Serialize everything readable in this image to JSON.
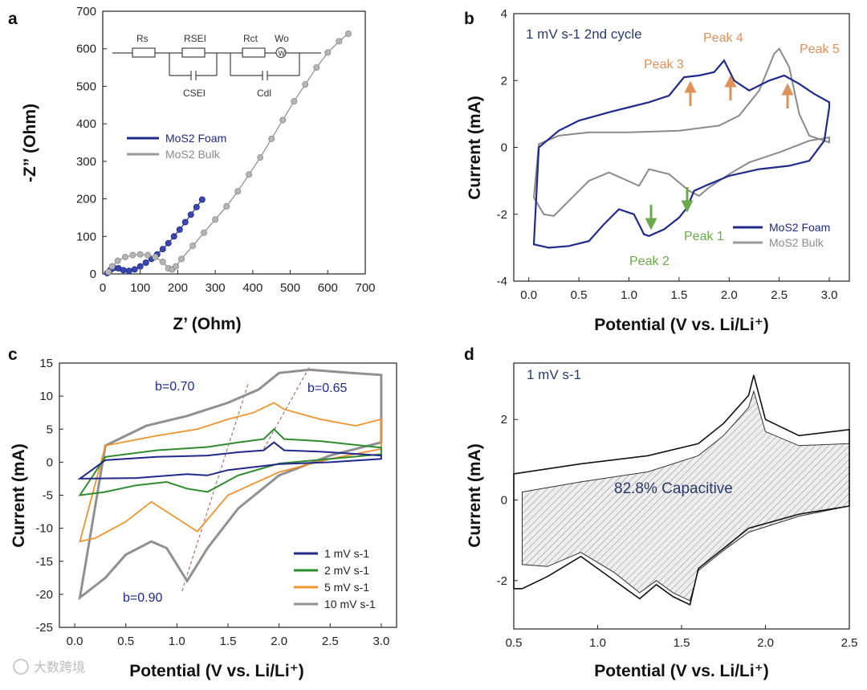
{
  "panels": {
    "a": {
      "label": "a",
      "xlabel": "Z’ (Ohm)",
      "ylabel": "-Z” (Ohm)",
      "legend": [
        "MoS2 Foam",
        "MoS2 Bulk"
      ],
      "circuit": {
        "rs": "Rs",
        "rsei": "RSEI",
        "rct": "Rct",
        "wo": "Wo",
        "csei": "CSEI",
        "cdl": "Cdl",
        "w_symbol": "W"
      }
    },
    "b": {
      "label": "b",
      "xlabel": "Potential (V vs. Li/Li⁺)",
      "ylabel": "Current (mA)",
      "note": "1 mV s-1  2nd cycle",
      "legend": [
        "MoS2 Foam",
        "MoS2 Bulk"
      ],
      "peaks": [
        "Peak 1",
        "Peak 2",
        "Peak 3",
        "Peak 4",
        "Peak 5"
      ]
    },
    "c": {
      "label": "c",
      "xlabel": "Potential (V vs. Li/Li⁺)",
      "ylabel": "Current (mA)",
      "legend": [
        "1 mV s-1",
        "2 mV s-1",
        "5 mV s-1",
        "10 mV s-1"
      ],
      "b_values": [
        "b=0.70",
        "b=0.65",
        "b=0.90"
      ]
    },
    "d": {
      "label": "d",
      "xlabel": "Potential (V vs. Li/Li⁺)",
      "ylabel": "Current (mA)",
      "note": "1 mV s-1",
      "fill_label": "82.8% Capacitive"
    }
  },
  "watermark": "大数跨境",
  "colors": {
    "foam": "#1f2a8c",
    "bulk": "#8a8a8a",
    "peak_ox": "#e0915a",
    "peak_red": "#6aaa4a",
    "green": "#2e8b2e",
    "orange": "#f0932b",
    "grey10": "#909090",
    "dash": "#b07070"
  },
  "chart_data": [
    {
      "panel": "a",
      "type": "scatter",
      "xlabel": "Z’ (Ohm)",
      "ylabel": "-Z” (Ohm)",
      "xlim": [
        0,
        700
      ],
      "ylim": [
        0,
        700
      ],
      "xticks": [
        0,
        100,
        200,
        300,
        400,
        500,
        600,
        700
      ],
      "yticks": [
        0,
        100,
        200,
        300,
        400,
        500,
        600,
        700
      ],
      "series": [
        {
          "name": "MoS2 Foam",
          "x": [
            12,
            20,
            30,
            42,
            55,
            70,
            85,
            100,
            115,
            130,
            145,
            160,
            175,
            190,
            205,
            220,
            235,
            250,
            265
          ],
          "y": [
            2,
            10,
            16,
            15,
            10,
            8,
            12,
            20,
            30,
            40,
            52,
            66,
            82,
            100,
            118,
            138,
            158,
            178,
            198
          ]
        },
        {
          "name": "MoS2 Bulk",
          "x": [
            15,
            25,
            40,
            60,
            80,
            100,
            120,
            140,
            160,
            175,
            185,
            195,
            210,
            240,
            270,
            300,
            330,
            360,
            390,
            420,
            450,
            480,
            510,
            540,
            570,
            600,
            630,
            655
          ],
          "y": [
            5,
            20,
            35,
            45,
            50,
            52,
            50,
            45,
            32,
            15,
            12,
            20,
            40,
            75,
            110,
            145,
            180,
            220,
            265,
            310,
            360,
            410,
            460,
            505,
            550,
            590,
            620,
            640
          ]
        }
      ]
    },
    {
      "panel": "b",
      "type": "line",
      "xlabel": "Potential (V vs. Li/Li⁺)",
      "ylabel": "Current (mA)",
      "xlim": [
        -0.15,
        3.2
      ],
      "ylim": [
        -4,
        4
      ],
      "xticks": [
        0.0,
        0.5,
        1.0,
        1.5,
        2.0,
        2.5,
        3.0
      ],
      "yticks": [
        -4,
        -2,
        0,
        2,
        4
      ],
      "series": [
        {
          "name": "MoS2 Foam",
          "x": [
            0.05,
            0.1,
            0.3,
            0.5,
            0.8,
            1.0,
            1.2,
            1.4,
            1.55,
            1.7,
            1.85,
            1.95,
            2.05,
            2.2,
            2.4,
            2.55,
            2.7,
            2.85,
            3.0,
            3.0,
            2.95,
            2.8,
            2.6,
            2.3,
            2.0,
            1.8,
            1.65,
            1.58,
            1.5,
            1.35,
            1.2,
            1.15,
            1.05,
            0.9,
            0.75,
            0.6,
            0.4,
            0.2,
            0.05
          ],
          "y": [
            -2.9,
            0.0,
            0.5,
            0.8,
            1.05,
            1.2,
            1.35,
            1.55,
            2.1,
            2.15,
            2.25,
            2.6,
            2.0,
            1.7,
            2.0,
            2.15,
            1.9,
            1.6,
            1.35,
            1.2,
            0.2,
            -0.4,
            -0.55,
            -0.65,
            -0.85,
            -1.1,
            -1.3,
            -1.8,
            -2.1,
            -2.45,
            -2.65,
            -2.6,
            -2.0,
            -1.85,
            -2.3,
            -2.8,
            -2.95,
            -3.0,
            -2.9
          ]
        },
        {
          "name": "MoS2 Bulk",
          "x": [
            0.05,
            0.1,
            0.3,
            0.6,
            1.0,
            1.5,
            1.9,
            2.1,
            2.3,
            2.45,
            2.5,
            2.6,
            2.7,
            2.8,
            3.0,
            3.0,
            2.8,
            2.5,
            2.2,
            2.0,
            1.8,
            1.7,
            1.6,
            1.4,
            1.2,
            1.1,
            0.95,
            0.8,
            0.6,
            0.4,
            0.25,
            0.15,
            0.05
          ],
          "y": [
            -1.5,
            0.1,
            0.35,
            0.45,
            0.45,
            0.5,
            0.65,
            0.95,
            1.7,
            2.8,
            2.95,
            2.4,
            1.0,
            0.35,
            0.15,
            0.3,
            0.2,
            -0.15,
            -0.45,
            -0.8,
            -1.2,
            -1.45,
            -1.3,
            -0.8,
            -0.65,
            -1.15,
            -0.95,
            -0.75,
            -1.0,
            -1.6,
            -2.05,
            -2.0,
            -1.5
          ]
        }
      ]
    },
    {
      "panel": "c",
      "type": "line",
      "xlabel": "Potential (V vs. Li/Li⁺)",
      "ylabel": "Current (mA)",
      "xlim": [
        -0.15,
        3.15
      ],
      "ylim": [
        -25,
        15
      ],
      "xticks": [
        0.0,
        0.5,
        1.0,
        1.5,
        2.0,
        2.5,
        3.0
      ],
      "yticks": [
        -25,
        -20,
        -15,
        -10,
        -5,
        0,
        5,
        10,
        15
      ],
      "series": [
        {
          "name": "1 mV s-1",
          "x": [
            0.05,
            0.3,
            0.8,
            1.3,
            1.6,
            1.85,
            1.95,
            2.05,
            2.4,
            3.0,
            3.0,
            2.5,
            2.0,
            1.5,
            1.3,
            1.1,
            0.6,
            0.05
          ],
          "y": [
            -2.5,
            0.3,
            0.8,
            1.0,
            1.5,
            1.8,
            3.0,
            1.8,
            1.6,
            1.0,
            0.5,
            0.0,
            -0.3,
            -1.2,
            -2.0,
            -1.8,
            -2.4,
            -2.5
          ]
        },
        {
          "name": "2 mV s-1",
          "x": [
            0.05,
            0.3,
            0.8,
            1.3,
            1.6,
            1.85,
            1.95,
            2.05,
            2.4,
            3.0,
            3.0,
            2.5,
            2.0,
            1.6,
            1.3,
            1.1,
            0.9,
            0.6,
            0.3,
            0.05
          ],
          "y": [
            -5.0,
            0.8,
            1.8,
            2.3,
            3.0,
            3.5,
            5.0,
            3.5,
            3.2,
            2.2,
            1.2,
            0.5,
            -0.2,
            -2.0,
            -4.5,
            -4.0,
            -3.0,
            -3.5,
            -4.5,
            -5.0
          ]
        },
        {
          "name": "5 mV s-1",
          "x": [
            0.05,
            0.3,
            0.8,
            1.2,
            1.5,
            1.75,
            1.95,
            2.05,
            2.4,
            2.75,
            3.0,
            3.0,
            2.5,
            2.0,
            1.5,
            1.2,
            1.0,
            0.75,
            0.5,
            0.2,
            0.05
          ],
          "y": [
            -12,
            2.5,
            4.0,
            5.0,
            6.5,
            7.5,
            9.0,
            8.0,
            6.5,
            5.5,
            6.5,
            2.0,
            0.5,
            -1.5,
            -5.0,
            -10.5,
            -8.5,
            -6.0,
            -9.0,
            -11.5,
            -12
          ]
        },
        {
          "name": "10 mV s-1",
          "x": [
            0.05,
            0.3,
            0.7,
            1.1,
            1.5,
            1.8,
            2.0,
            2.3,
            2.7,
            3.0,
            3.0,
            2.5,
            2.0,
            1.6,
            1.3,
            1.1,
            0.9,
            0.75,
            0.5,
            0.3,
            0.05
          ],
          "y": [
            -20.5,
            2.5,
            5.5,
            7.0,
            9.0,
            11.0,
            13.5,
            14.0,
            13.5,
            13.2,
            3.0,
            1.0,
            -2.0,
            -7.0,
            -13.0,
            -18.0,
            -13.0,
            -12.0,
            -14.0,
            -17.5,
            -20.5
          ]
        }
      ]
    },
    {
      "panel": "d",
      "type": "area",
      "xlabel": "Potential (V vs. Li/Li⁺)",
      "ylabel": "Current (mA)",
      "xlim": [
        0.5,
        2.5
      ],
      "ylim": [
        -3.2,
        3.4
      ],
      "xticks": [
        0.5,
        1.0,
        1.5,
        2.0,
        2.5
      ],
      "yticks": [
        -2,
        0,
        2
      ],
      "series": [
        {
          "name": "total",
          "x": [
            0.5,
            0.9,
            1.3,
            1.6,
            1.75,
            1.9,
            1.93,
            2.0,
            2.2,
            2.5,
            2.5,
            2.2,
            1.9,
            1.75,
            1.6,
            1.55,
            1.45,
            1.35,
            1.25,
            1.1,
            0.9,
            0.7,
            0.55,
            0.5
          ],
          "y": [
            0.65,
            0.9,
            1.1,
            1.4,
            1.9,
            2.6,
            3.1,
            2.0,
            1.6,
            1.75,
            -0.15,
            -0.35,
            -0.7,
            -1.2,
            -1.7,
            -2.6,
            -2.4,
            -2.1,
            -2.45,
            -2.0,
            -1.4,
            -1.9,
            -2.2,
            -2.2
          ]
        },
        {
          "name": "capacitive",
          "x": [
            0.55,
            0.9,
            1.3,
            1.6,
            1.75,
            1.9,
            1.93,
            2.0,
            2.2,
            2.5,
            2.5,
            2.2,
            1.9,
            1.75,
            1.6,
            1.55,
            1.45,
            1.35,
            1.25,
            1.1,
            0.9,
            0.7,
            0.55
          ],
          "y": [
            0.2,
            0.45,
            0.7,
            1.1,
            1.6,
            2.3,
            2.7,
            1.7,
            1.35,
            1.4,
            -0.15,
            -0.4,
            -0.8,
            -1.25,
            -1.75,
            -2.5,
            -2.3,
            -2.0,
            -2.3,
            -1.8,
            -1.3,
            -1.65,
            -1.6
          ]
        }
      ]
    }
  ]
}
